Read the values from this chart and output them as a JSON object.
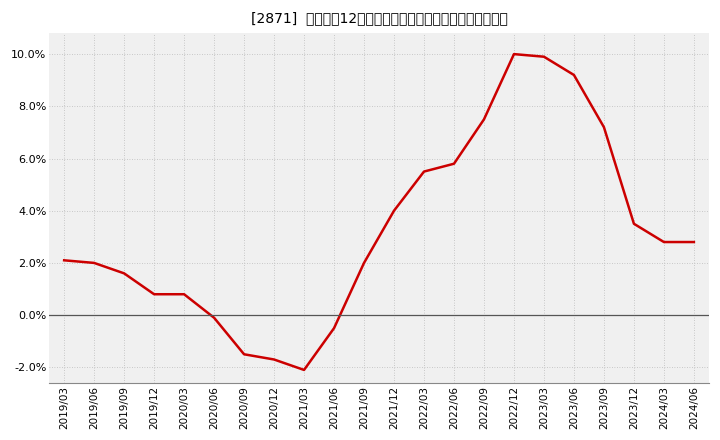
{
  "title": "[2871]  売上高の12か月移動合計の対前年同期増減率の推移",
  "line_color": "#cc0000",
  "background_color": "#ffffff",
  "plot_bg_color": "#f0f0f0",
  "grid_color": "#bbbbbb",
  "zero_line_color": "#555555",
  "ylim": [
    -0.026,
    0.108
  ],
  "yticks": [
    -0.02,
    0.0,
    0.02,
    0.04,
    0.06,
    0.08,
    0.1
  ],
  "x_labels": [
    "2019/03",
    "2019/06",
    "2019/09",
    "2019/12",
    "2020/03",
    "2020/06",
    "2020/09",
    "2020/12",
    "2021/03",
    "2021/06",
    "2021/09",
    "2021/12",
    "2022/03",
    "2022/06",
    "2022/09",
    "2022/12",
    "2023/03",
    "2023/06",
    "2023/09",
    "2023/12",
    "2024/03",
    "2024/06"
  ],
  "data_y": [
    0.021,
    0.02,
    0.016,
    0.008,
    0.008,
    -0.001,
    -0.015,
    -0.017,
    -0.021,
    -0.005,
    0.02,
    0.04,
    0.055,
    0.058,
    0.075,
    0.1,
    0.099,
    0.092,
    0.072,
    0.035,
    0.028,
    0.028
  ],
  "title_fontsize": 11,
  "tick_fontsize": 7.5,
  "line_width": 1.8
}
